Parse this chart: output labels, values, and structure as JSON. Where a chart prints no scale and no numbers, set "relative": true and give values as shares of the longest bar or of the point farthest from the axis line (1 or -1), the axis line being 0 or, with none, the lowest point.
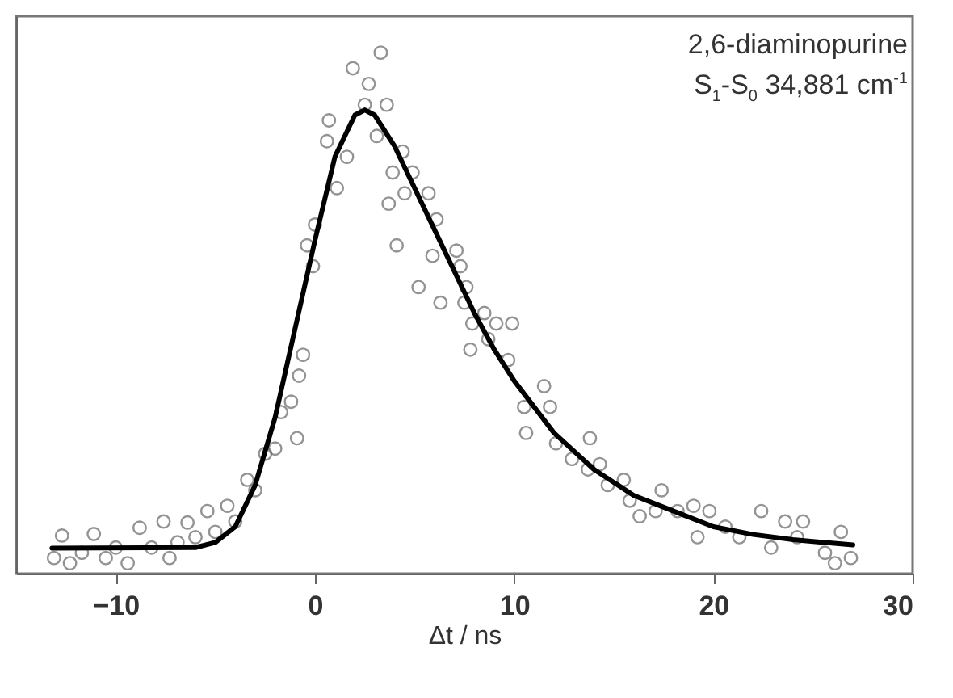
{
  "chart_data": {
    "type": "scatter",
    "relative": true,
    "xlabel": "Δt / ns",
    "xlim": [
      -15,
      30
    ],
    "xticks": [
      -10,
      0,
      10,
      20,
      30
    ],
    "tick_labels": "x",
    "grid": false,
    "annotations": [
      "2,6-diaminopurine",
      "S$_{1}$-S$_{0}$ 34,881 cm$^{-1}$"
    ],
    "series": [
      {
        "type": "scatter",
        "color": "#666666",
        "marker": "circle",
        "x": [
          -13.1,
          -12.7,
          -12.3,
          -11.7,
          -11.1,
          -10.5,
          -10,
          -9.4,
          -8.8,
          -8.2,
          -7.6,
          -7.3,
          -6.9,
          -6.4,
          -6,
          -5.4,
          -5,
          -4.4,
          -4,
          -3.4,
          -3,
          -2.5,
          -2,
          -1.7,
          -1.2,
          -0.9,
          -0.8,
          -0.6,
          -0.4,
          -0.1,
          0,
          0.6,
          0.7,
          1.1,
          1.6,
          1.9,
          2.5,
          2.7,
          3.1,
          3.3,
          3.6,
          3.7,
          3.9,
          4.1,
          4.4,
          4.5,
          4.9,
          5.2,
          5.7,
          5.9,
          6.1,
          6.3,
          7.1,
          7.3,
          7.5,
          7.6,
          7.8,
          7.9,
          8.5,
          8.7,
          9.1,
          9.7,
          9.9,
          10.5,
          10.6,
          11.5,
          11.8,
          12.1,
          12.9,
          13.7,
          13.8,
          14.3,
          14.7,
          15.5,
          15.8,
          16.3,
          17.1,
          17.4,
          18.2,
          19.0,
          19.2,
          19.8,
          20.6,
          21.3,
          22.4,
          22.9,
          23.6,
          24.2,
          24.5,
          25.6,
          26.1,
          26.4,
          26.9
        ],
        "values": [
          0.03,
          0.073,
          0.02,
          0.04,
          0.076,
          0.03,
          0.05,
          0.02,
          0.088,
          0.05,
          0.1,
          0.03,
          0.06,
          0.098,
          0.07,
          0.12,
          0.08,
          0.13,
          0.1,
          0.18,
          0.16,
          0.23,
          0.24,
          0.31,
          0.33,
          0.26,
          0.38,
          0.42,
          0.63,
          0.59,
          0.67,
          0.83,
          0.87,
          0.74,
          0.8,
          0.97,
          0.9,
          0.94,
          0.84,
          1.0,
          0.9,
          0.71,
          0.77,
          0.63,
          0.81,
          0.73,
          0.77,
          0.55,
          0.73,
          0.61,
          0.68,
          0.52,
          0.62,
          0.59,
          0.52,
          0.55,
          0.43,
          0.48,
          0.5,
          0.45,
          0.48,
          0.41,
          0.48,
          0.32,
          0.27,
          0.36,
          0.32,
          0.25,
          0.22,
          0.2,
          0.26,
          0.21,
          0.17,
          0.18,
          0.14,
          0.11,
          0.12,
          0.16,
          0.12,
          0.13,
          0.07,
          0.12,
          0.09,
          0.07,
          0.12,
          0.05,
          0.1,
          0.07,
          0.1,
          0.04,
          0.02,
          0.08,
          0.03
        ]
      },
      {
        "type": "line",
        "color": "#000000",
        "x": [
          -13.2,
          -6,
          -5,
          -4,
          -3,
          -2,
          -1,
          0,
          1,
          2,
          2.5,
          3,
          4,
          5,
          6,
          7,
          8,
          9,
          10,
          12,
          14,
          16,
          18,
          20,
          22,
          24,
          27
        ],
        "values": [
          0.049,
          0.05,
          0.06,
          0.09,
          0.17,
          0.3,
          0.47,
          0.64,
          0.8,
          0.88,
          0.89,
          0.88,
          0.82,
          0.74,
          0.66,
          0.58,
          0.5,
          0.43,
          0.37,
          0.27,
          0.2,
          0.15,
          0.12,
          0.09,
          0.075,
          0.065,
          0.055
        ]
      }
    ]
  }
}
